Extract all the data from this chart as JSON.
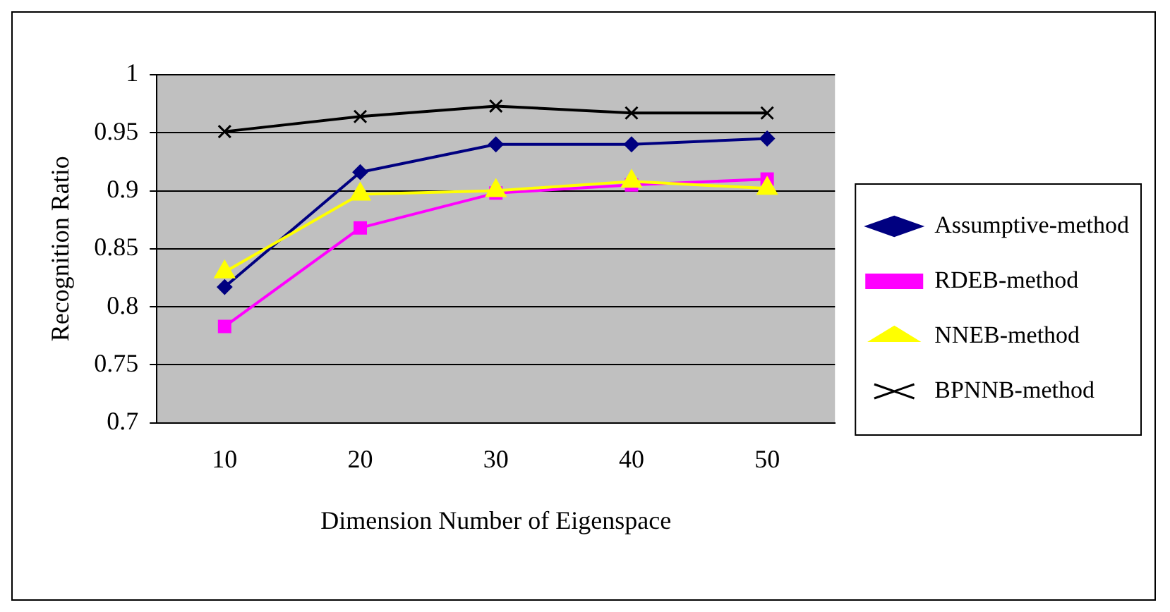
{
  "chart_data": {
    "type": "line",
    "xlabel": "Dimension Number of Eigenspace",
    "ylabel": "Recognition Ratio",
    "categories": [
      "10",
      "20",
      "30",
      "40",
      "50"
    ],
    "series": [
      {
        "name": "Assumptive-method",
        "color": "#000080",
        "marker": "diamond",
        "values": [
          0.817,
          0.916,
          0.94,
          0.94,
          0.945
        ]
      },
      {
        "name": "RDEB-method",
        "color": "#ff00ff",
        "marker": "square",
        "values": [
          0.783,
          0.868,
          0.898,
          0.905,
          0.91
        ]
      },
      {
        "name": "NNEB-method",
        "color": "#ffff00",
        "marker": "triangle",
        "values": [
          0.83,
          0.897,
          0.9,
          0.908,
          0.902
        ]
      },
      {
        "name": "BPNNB-method",
        "color": "#000000",
        "marker": "cross",
        "values": [
          0.951,
          0.964,
          0.973,
          0.967,
          0.967
        ]
      }
    ],
    "ylim": [
      0.7,
      1
    ],
    "yticks": [
      0.7,
      0.75,
      0.8,
      0.85,
      0.9,
      0.95,
      1
    ],
    "grid": "y",
    "legend": "right"
  }
}
